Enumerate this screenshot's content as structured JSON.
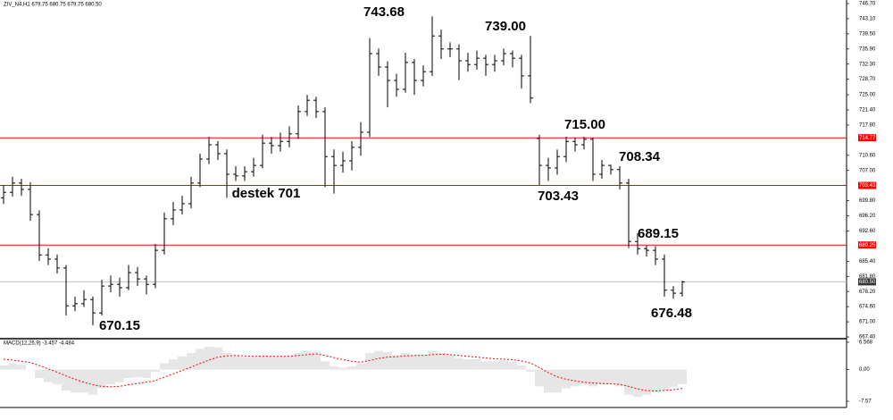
{
  "chart_data": [
    {
      "type": "ohlc",
      "header": "ZIV_N4,H1  679.75 680.75 679.75 680.50",
      "color": "#000000",
      "open": [
        700.5,
        701.8,
        704.0,
        702.5,
        696.5,
        686.9,
        685.9,
        683.8,
        674.8,
        675.3,
        676.3,
        673.1,
        679.5,
        679.9,
        679.1,
        682.7,
        681.2,
        679.9,
        688.0,
        695.5,
        697.6,
        699.1,
        704.0,
        709.7,
        713.1,
        711.0,
        706.1,
        705.7,
        706.7,
        708.2,
        713.5,
        712.9,
        713.9,
        715.7,
        721.0,
        723.7,
        721.0,
        710.3,
        708.2,
        709.3,
        712.5,
        716.1,
        734.8,
        731.6,
        728.4,
        726.3,
        732.7,
        728.4,
        730.5,
        739.0,
        735.9,
        735.9,
        733.1,
        732.2,
        733.7,
        732.2,
        733.1,
        734.8,
        733.7,
        729.5,
        714.6,
        708.2,
        707.6,
        710.3,
        713.9,
        713.1,
        714.4,
        706.1,
        708.2,
        707.2,
        704.0,
        690.1,
        688.4,
        688.0,
        685.9,
        678.5,
        677.8
      ],
      "high": [
        703.5,
        705.5,
        705.0,
        704.2,
        697.5,
        688.5,
        687.0,
        684.5,
        677.0,
        678.5,
        677.0,
        681.0,
        682.0,
        681.5,
        684.5,
        684.0,
        682.0,
        689.5,
        697.0,
        699.5,
        701.0,
        705.5,
        711.0,
        715.0,
        714.0,
        712.0,
        708.0,
        708.0,
        710.0,
        715.5,
        715.0,
        716.0,
        717.5,
        722.5,
        725.0,
        724.5,
        722.0,
        712.0,
        711.5,
        714.0,
        718.5,
        738.5,
        736.0,
        733.0,
        730.0,
        735.0,
        733.5,
        732.0,
        743.68,
        740.5,
        737.5,
        737.0,
        735.0,
        735.5,
        734.5,
        734.5,
        736.0,
        735.5,
        734.5,
        739.0,
        715.5,
        710.0,
        712.0,
        715.0,
        714.8,
        715.0,
        714.8,
        709.5,
        708.34,
        708.0,
        705.0,
        692.0,
        689.15,
        689.0,
        687.0,
        679.5,
        680.75
      ],
      "low": [
        699.0,
        700.8,
        701.0,
        695.0,
        685.5,
        684.5,
        682.5,
        672.5,
        673.5,
        674.5,
        670.15,
        672.5,
        678.0,
        677.0,
        678.5,
        679.5,
        677.5,
        679.0,
        687.0,
        694.0,
        696.5,
        698.0,
        703.0,
        708.5,
        709.5,
        700.5,
        704.5,
        704.5,
        705.5,
        707.5,
        711.0,
        711.5,
        712.5,
        714.5,
        720.0,
        719.5,
        703.0,
        701.5,
        706.5,
        707.0,
        710.5,
        715.0,
        729.5,
        722.0,
        724.5,
        725.5,
        725.0,
        727.0,
        729.5,
        733.5,
        734.0,
        728.5,
        730.5,
        731.0,
        729.5,
        730.5,
        732.0,
        731.5,
        726.5,
        723.0,
        703.43,
        704.5,
        706.0,
        709.0,
        711.5,
        712.0,
        704.5,
        705.0,
        706.0,
        702.5,
        688.5,
        687.0,
        686.5,
        684.5,
        677.0,
        676.48,
        677.0
      ],
      "close": [
        701.8,
        704.0,
        702.5,
        696.5,
        686.9,
        685.9,
        683.8,
        674.8,
        675.3,
        676.3,
        673.1,
        679.5,
        679.9,
        679.1,
        682.7,
        681.2,
        679.9,
        688.0,
        695.5,
        697.6,
        699.1,
        704.0,
        709.7,
        713.1,
        711.0,
        706.1,
        705.7,
        706.7,
        708.2,
        713.5,
        712.9,
        713.9,
        715.7,
        721.0,
        723.7,
        721.0,
        710.3,
        708.2,
        709.3,
        712.5,
        716.1,
        734.8,
        731.6,
        728.4,
        726.3,
        732.7,
        728.4,
        730.5,
        739.0,
        735.9,
        735.9,
        733.1,
        732.2,
        733.7,
        732.2,
        733.1,
        734.8,
        733.7,
        729.5,
        724.2,
        708.2,
        707.6,
        710.3,
        713.9,
        713.1,
        714.4,
        706.1,
        708.2,
        707.2,
        704.0,
        690.1,
        688.4,
        688.0,
        685.9,
        678.5,
        677.8,
        680.5
      ],
      "ylim": [
        667.19,
        747.55
      ],
      "yticks": [
        {
          "value": 746.7,
          "label": "746.70"
        },
        {
          "value": 743.1,
          "label": "743.10"
        },
        {
          "value": 739.5,
          "label": "739.50"
        },
        {
          "value": 735.9,
          "label": "735.90"
        },
        {
          "value": 732.3,
          "label": "732.30"
        },
        {
          "value": 728.7,
          "label": "728.70"
        },
        {
          "value": 725.0,
          "label": "725.00"
        },
        {
          "value": 721.4,
          "label": "721.40"
        },
        {
          "value": 717.8,
          "label": "717.80"
        },
        {
          "value": 710.6,
          "label": "710.60"
        },
        {
          "value": 707.0,
          "label": "707.00"
        },
        {
          "value": 699.8,
          "label": "699.80"
        },
        {
          "value": 696.2,
          "label": "696.20"
        },
        {
          "value": 692.6,
          "label": "692.60"
        },
        {
          "value": 685.4,
          "label": "685.40"
        },
        {
          "value": 681.8,
          "label": "681.80"
        },
        {
          "value": 678.2,
          "label": "678.20"
        },
        {
          "value": 674.6,
          "label": "674.60"
        },
        {
          "value": 671.0,
          "label": "671.00"
        },
        {
          "value": 667.4,
          "label": "667.40"
        }
      ],
      "levels": [
        {
          "value": 714.77,
          "label": "714.77",
          "color": "#ff0000"
        },
        {
          "value": 703.43,
          "label": "703.43",
          "color": "#ff0000"
        },
        {
          "value": 689.25,
          "label": "689.25",
          "color": "#ff0000"
        },
        {
          "value": 680.5,
          "label": "680.50",
          "color": "#c0c0c0"
        }
      ],
      "annotations": [
        "743.68",
        "739.00",
        "715.00",
        "708.34",
        "703.43",
        "689.15",
        "676.48",
        "670.15",
        "destek 701"
      ]
    },
    {
      "type": "macd",
      "title": "MACD(12,26,9) -3.457 -4.484",
      "ylim": [
        -8.85,
        7.21
      ],
      "yticks": [
        6.568,
        {
          "value": 0,
          "label": "0.00"
        },
        -7.57
      ],
      "histogram": {
        "color": "#c0c0c0",
        "values": [
          1.0,
          1.5,
          1.2,
          0.0,
          -2.0,
          -3.0,
          -3.5,
          -5.0,
          -5.5,
          -5.5,
          -6.0,
          -4.5,
          -3.5,
          -3.0,
          -2.0,
          -1.8,
          -2.0,
          -0.5,
          1.5,
          2.5,
          3.2,
          4.0,
          5.0,
          5.5,
          5.3,
          4.0,
          3.5,
          3.0,
          3.0,
          3.5,
          3.3,
          3.2,
          3.3,
          4.0,
          4.5,
          4.2,
          2.0,
          0.8,
          0.5,
          0.8,
          1.5,
          4.0,
          4.5,
          4.2,
          3.5,
          4.0,
          3.5,
          3.5,
          4.5,
          4.0,
          3.5,
          2.8,
          2.5,
          2.5,
          2.0,
          2.0,
          2.2,
          2.0,
          1.0,
          -0.5,
          -4.0,
          -5.5,
          -5.5,
          -4.5,
          -4.0,
          -3.5,
          -4.0,
          -3.5,
          -3.5,
          -4.0,
          -6.0,
          -6.5,
          -6.0,
          -5.5,
          -5.0,
          -4.2,
          -3.457
        ]
      },
      "signal": {
        "color": "#ff0000",
        "values": [
          2.5,
          2.3,
          2.0,
          1.7,
          1.0,
          0.2,
          -0.6,
          -1.5,
          -2.3,
          -3.0,
          -3.6,
          -4.0,
          -4.1,
          -4.0,
          -3.6,
          -3.3,
          -3.0,
          -2.6,
          -1.8,
          -1.0,
          -0.2,
          0.6,
          1.5,
          2.3,
          3.0,
          3.3,
          3.4,
          3.3,
          3.2,
          3.2,
          3.2,
          3.2,
          3.2,
          3.4,
          3.6,
          3.8,
          3.4,
          2.9,
          2.4,
          2.0,
          1.8,
          2.2,
          2.7,
          3.0,
          3.1,
          3.3,
          3.4,
          3.4,
          3.6,
          3.7,
          3.6,
          3.4,
          3.2,
          3.0,
          2.8,
          2.6,
          2.5,
          2.4,
          2.1,
          1.6,
          0.5,
          -0.7,
          -1.7,
          -2.3,
          -2.7,
          -3.0,
          -3.2,
          -3.3,
          -3.4,
          -3.5,
          -4.0,
          -4.6,
          -5.0,
          -5.1,
          -5.0,
          -4.8,
          -4.484
        ]
      }
    }
  ]
}
